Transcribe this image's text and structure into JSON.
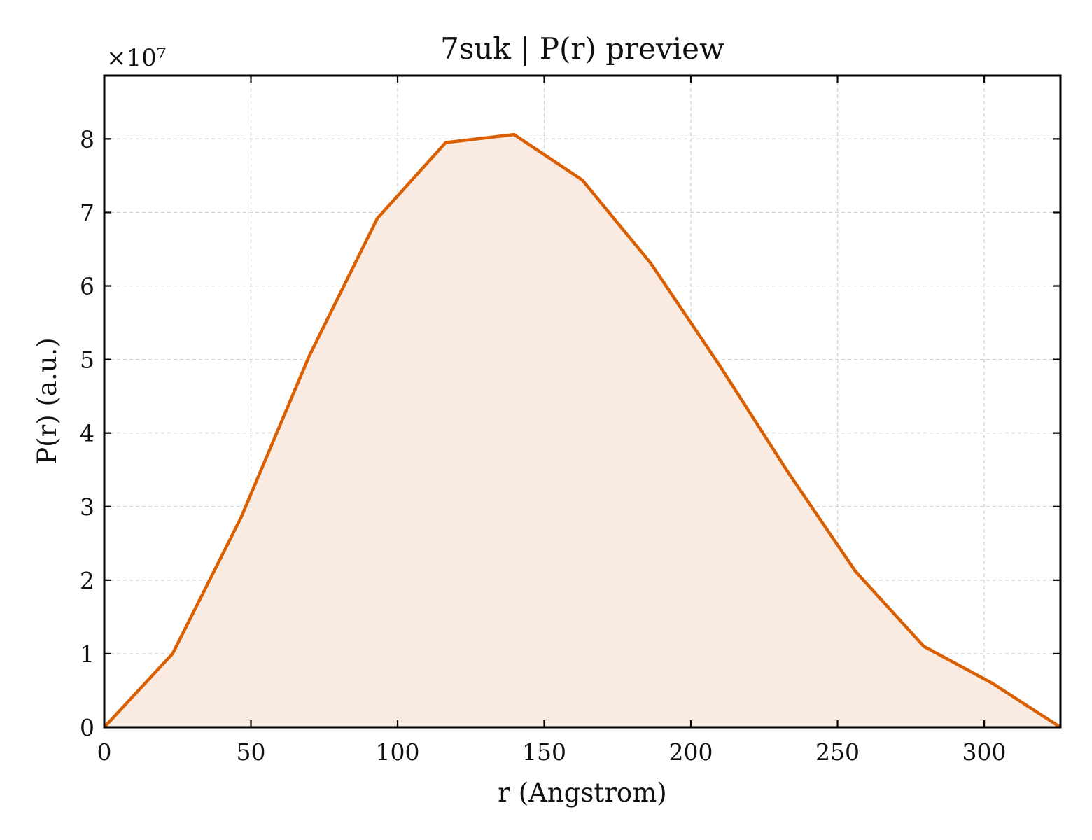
{
  "chart_data": {
    "type": "area",
    "title": "7suk | P(r) preview",
    "xlabel": "r (Angstrom)",
    "ylabel": "P(r) (a.u.)",
    "y_exponent_label": "×10⁷",
    "y_scale_factor": 10000000,
    "xlim": [
      0,
      326
    ],
    "ylim": [
      0,
      8.86
    ],
    "x_ticks": [
      0,
      50,
      100,
      150,
      200,
      250,
      300
    ],
    "y_ticks": [
      0,
      1,
      2,
      3,
      4,
      5,
      6,
      7,
      8
    ],
    "grid": true,
    "line_color": "#d95f02",
    "fill_color": "#f9ebe1",
    "series": [
      {
        "x": [
          0,
          23.3,
          46.6,
          69.9,
          93.1,
          116.4,
          139.7,
          163.0,
          186.3,
          209.6,
          232.9,
          256.1,
          279.4,
          302.7,
          326.0
        ],
        "values": [
          0,
          1.0,
          2.85,
          5.05,
          6.92,
          7.95,
          8.06,
          7.44,
          6.31,
          4.93,
          3.48,
          2.12,
          1.1,
          0.6,
          0
        ]
      }
    ]
  }
}
